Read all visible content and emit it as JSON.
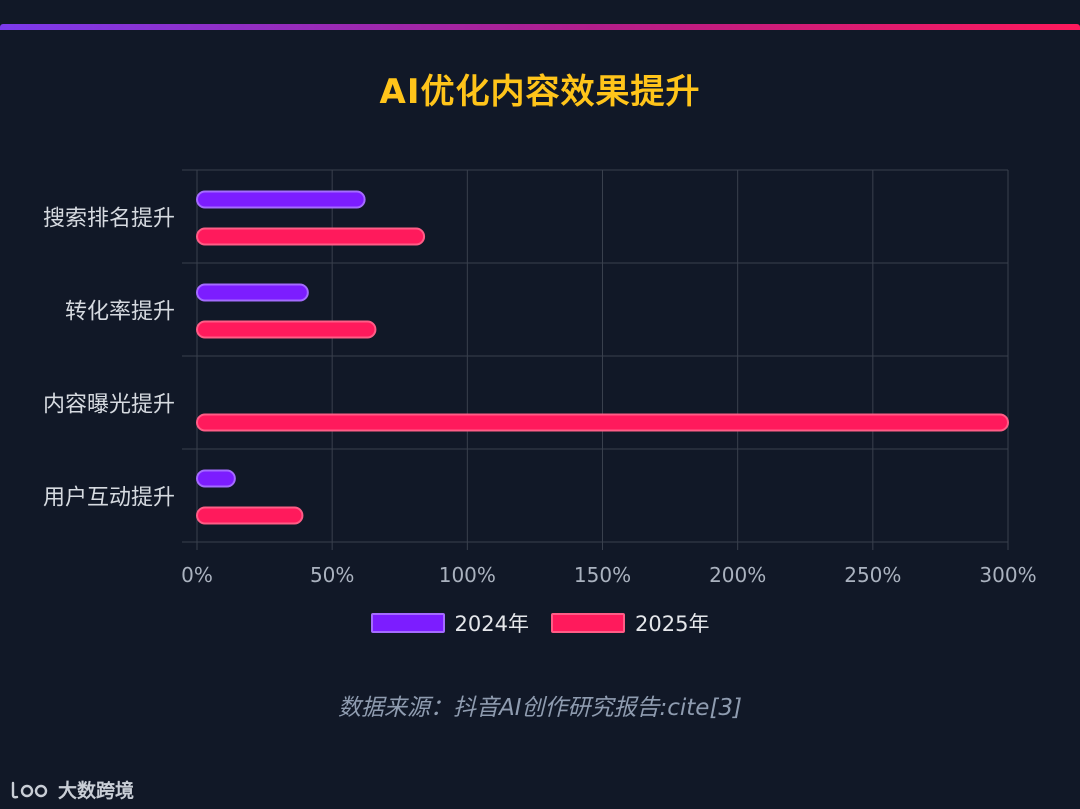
{
  "colors": {
    "background": "#111827",
    "title": "#ffc41a",
    "series_2024": "#7c1dff",
    "series_2025": "#ff1a5c"
  },
  "source_text": "数据来源：抖音AI创作研究报告:cite[3]",
  "brand": {
    "name": "大数跨境",
    "icon": "brand-logo-icon"
  },
  "chart_data": {
    "type": "bar",
    "orientation": "horizontal",
    "title": "AI优化内容效果提升",
    "categories": [
      "搜索排名提升",
      "转化率提升",
      "内容曝光提升",
      "用户互动提升"
    ],
    "series": [
      {
        "name": "2024年",
        "values": [
          62,
          41,
          0,
          14
        ]
      },
      {
        "name": "2025年",
        "values": [
          84,
          66,
          300,
          39
        ]
      }
    ],
    "xlim": [
      0,
      300
    ],
    "x_ticks": [
      "0%",
      "50%",
      "100%",
      "150%",
      "200%",
      "250%",
      "300%"
    ],
    "grid": true,
    "legend": "bottom-center"
  }
}
